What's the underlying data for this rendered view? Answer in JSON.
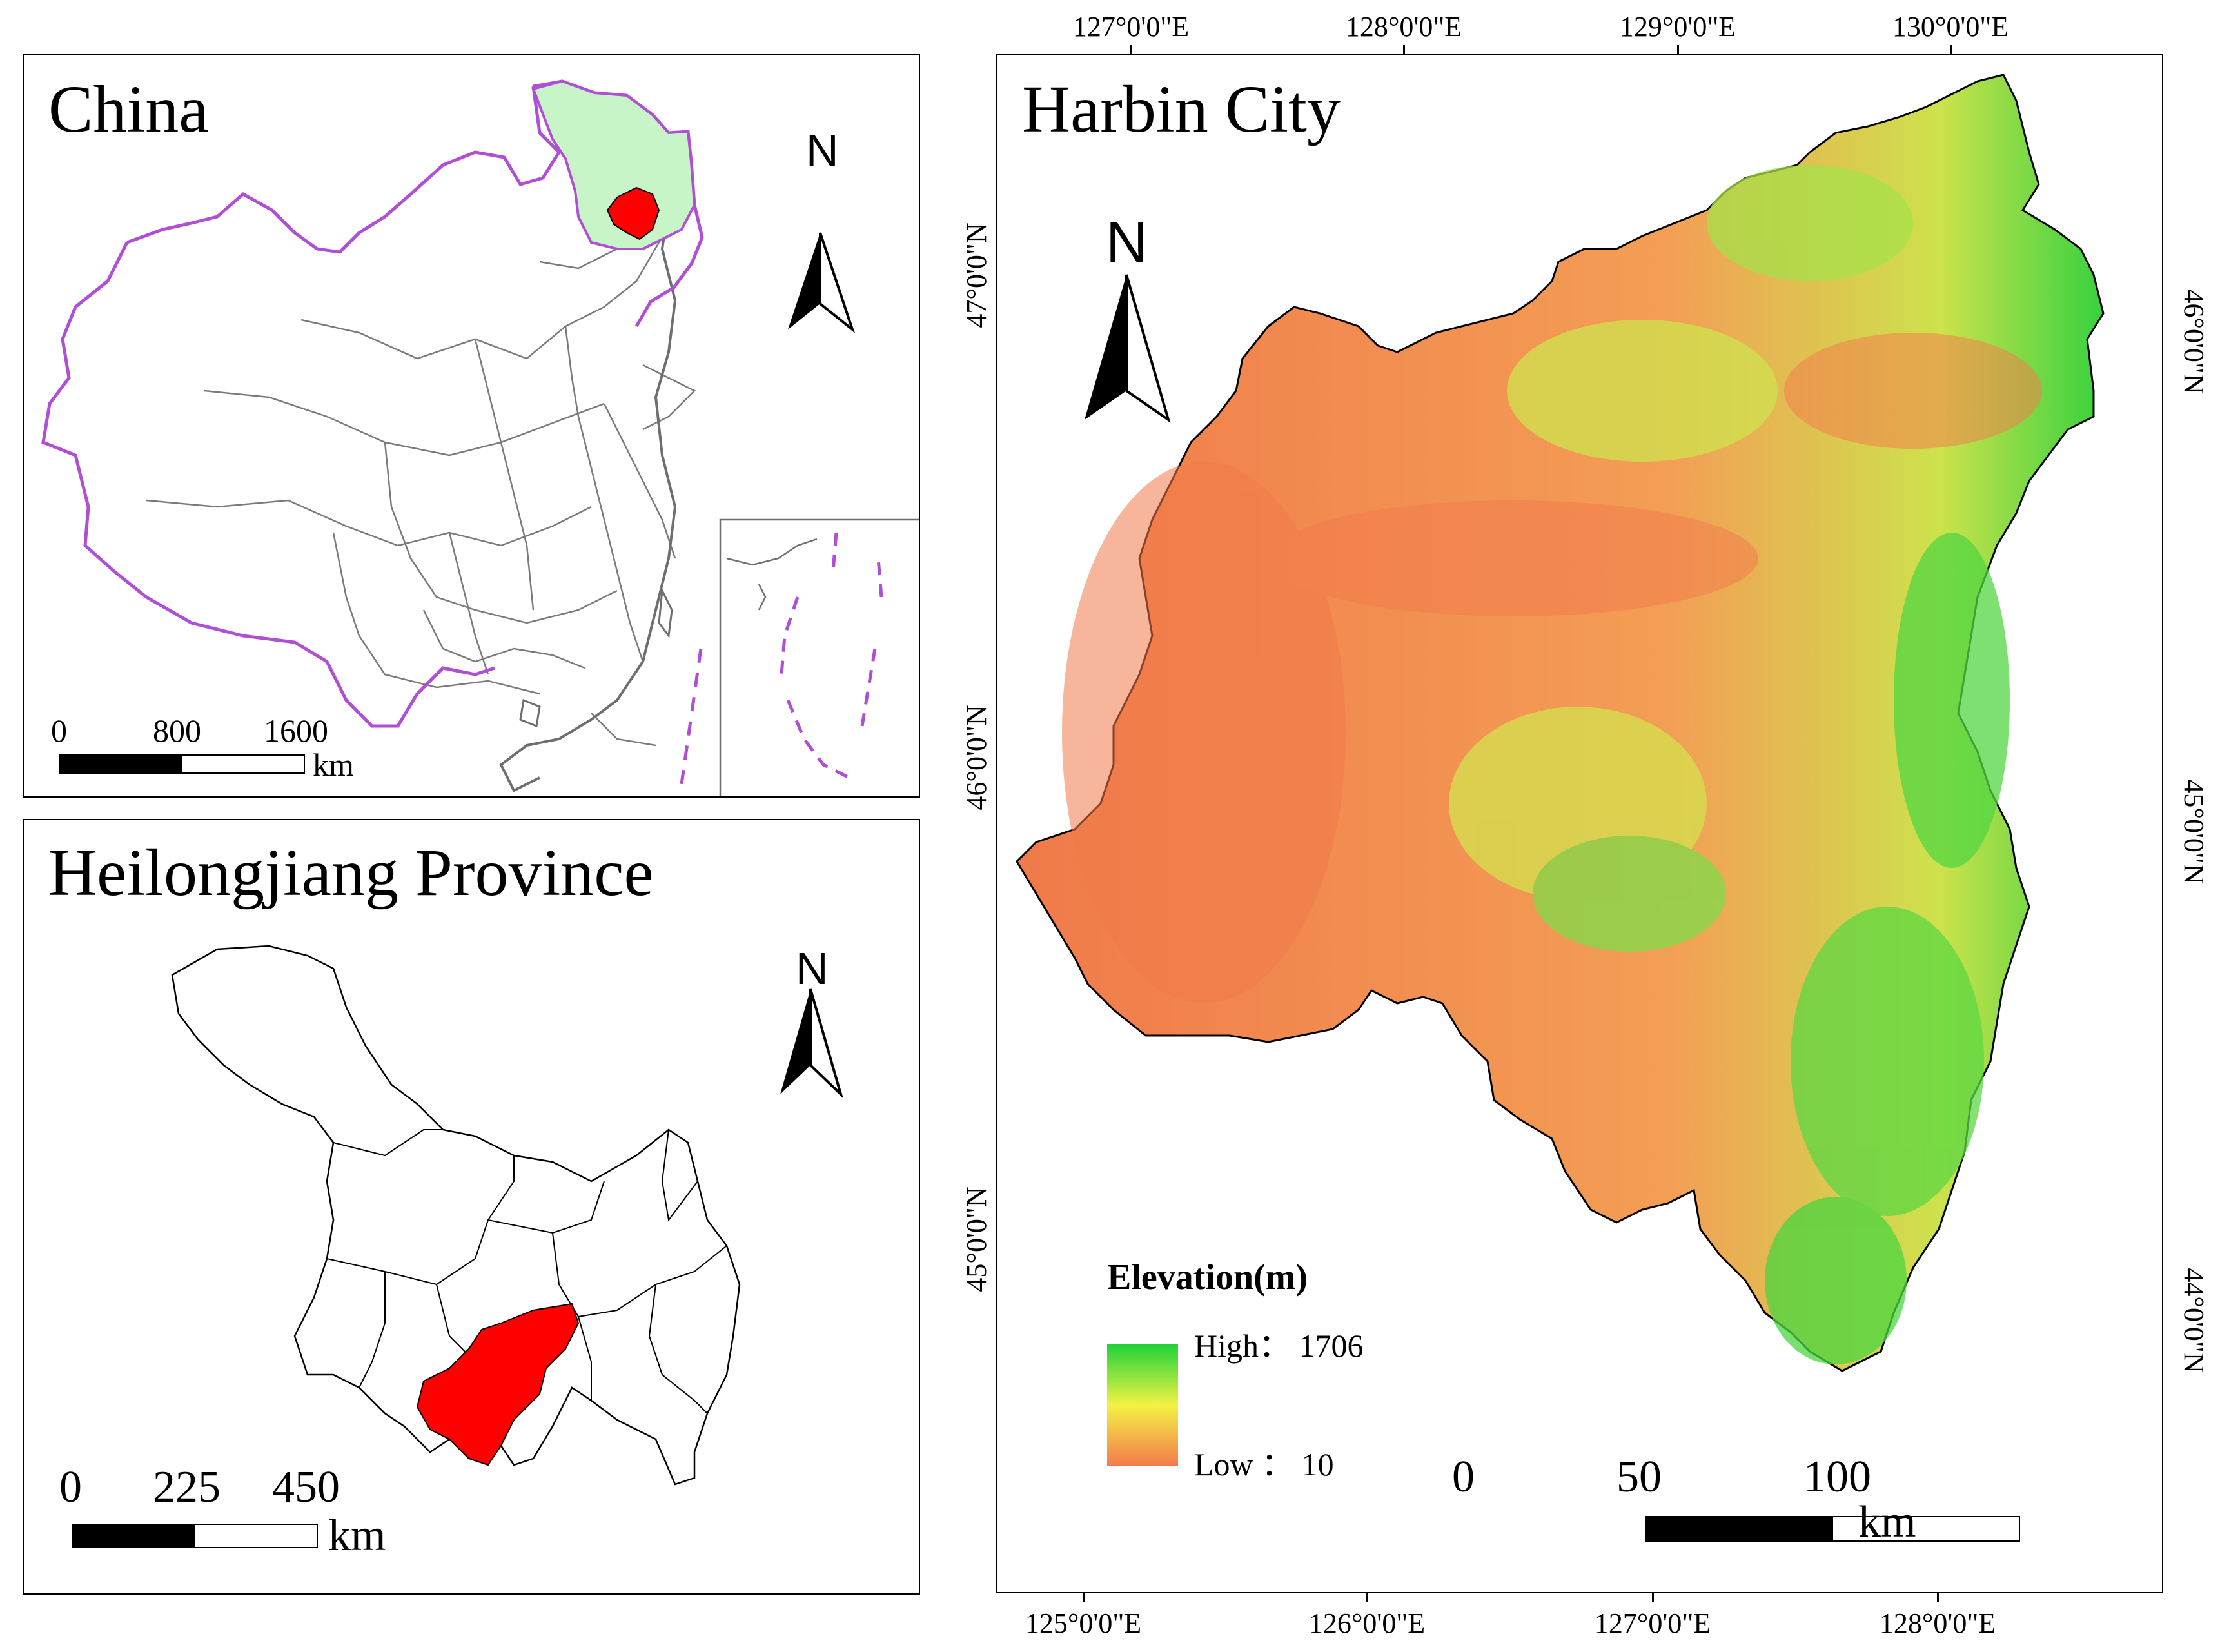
{
  "panels": {
    "china": {
      "title": "China",
      "north": "N",
      "scale": {
        "labels": [
          "0",
          "800",
          "1600"
        ],
        "unit": "km"
      }
    },
    "heilongjiang": {
      "title": "Heilongjiang Province",
      "north": "N",
      "scale": {
        "labels": [
          "0",
          "225",
          "450"
        ],
        "unit": "km"
      }
    },
    "harbin": {
      "title": "Harbin City",
      "north": "N",
      "scale": {
        "labels": [
          "0",
          "50",
          "100"
        ],
        "unit": "km"
      },
      "legend": {
        "title": "Elevation(m)",
        "high_label": "High： 1706",
        "low_label": "Low ： 10",
        "high_color": "#1fd23a",
        "mid_color": "#f2f244",
        "low_color": "#f47a4c"
      },
      "graticule": {
        "top": [
          "127°0'0\"E",
          "128°0'0\"E",
          "129°0'0\"E",
          "130°0'0\"E"
        ],
        "bottom": [
          "125°0'0\"E",
          "126°0'0\"E",
          "127°0'0\"E",
          "128°0'0\"E"
        ],
        "left": [
          "47°0'0\"N",
          "46°0'0\"N",
          "45°0'0\"N"
        ],
        "right": [
          "46°0'0\"N",
          "45°0'0\"N",
          "44°0'0\"N"
        ]
      }
    }
  },
  "colors": {
    "china_border": "#b04fd6",
    "heilongjiang_fill": "#c8f5c8",
    "harbin_fill": "#ff0000",
    "boundary": "#6e6e6e"
  }
}
